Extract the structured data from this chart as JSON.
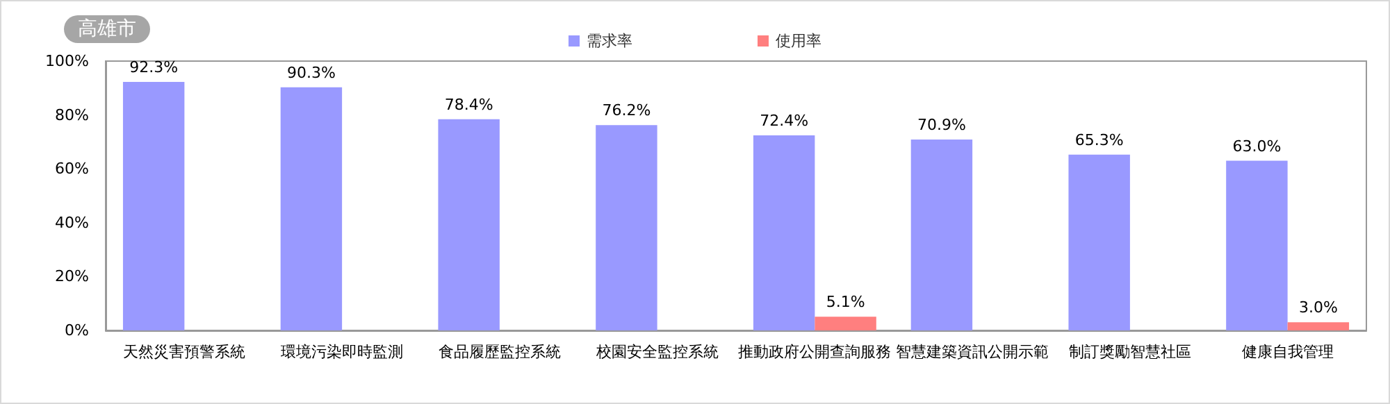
{
  "chart_data": {
    "type": "bar",
    "title": "高雄市",
    "categories": [
      "天然災害預警系統",
      "環境污染即時監測",
      "食品履歷監控系統",
      "校園安全監控系統",
      "推動政府公開查詢服務",
      "智慧建築資訊公開示範",
      "制訂獎勵智慧社區",
      "健康自我管理"
    ],
    "series": [
      {
        "name": "需求率",
        "color": "#9999ff",
        "values": [
          92.3,
          90.3,
          78.4,
          76.2,
          72.4,
          70.9,
          65.3,
          63.0
        ],
        "value_labels": [
          "92.3%",
          "90.3%",
          "78.4%",
          "76.2%",
          "72.4%",
          "70.9%",
          "65.3%",
          "63.0%"
        ]
      },
      {
        "name": "使用率",
        "color": "#ff7f7f",
        "values": [
          null,
          null,
          null,
          null,
          5.1,
          null,
          null,
          3.0
        ],
        "value_labels": [
          null,
          null,
          null,
          null,
          "5.1%",
          null,
          null,
          "3.0%"
        ]
      }
    ],
    "ylim": [
      0,
      100
    ],
    "yticks": [
      {
        "value": 0,
        "label": "0%"
      },
      {
        "value": 20,
        "label": "20%"
      },
      {
        "value": 40,
        "label": "40%"
      },
      {
        "value": 60,
        "label": "60%"
      },
      {
        "value": 80,
        "label": "80%"
      },
      {
        "value": 100,
        "label": "100%"
      }
    ],
    "grid": false,
    "legend": "top"
  }
}
